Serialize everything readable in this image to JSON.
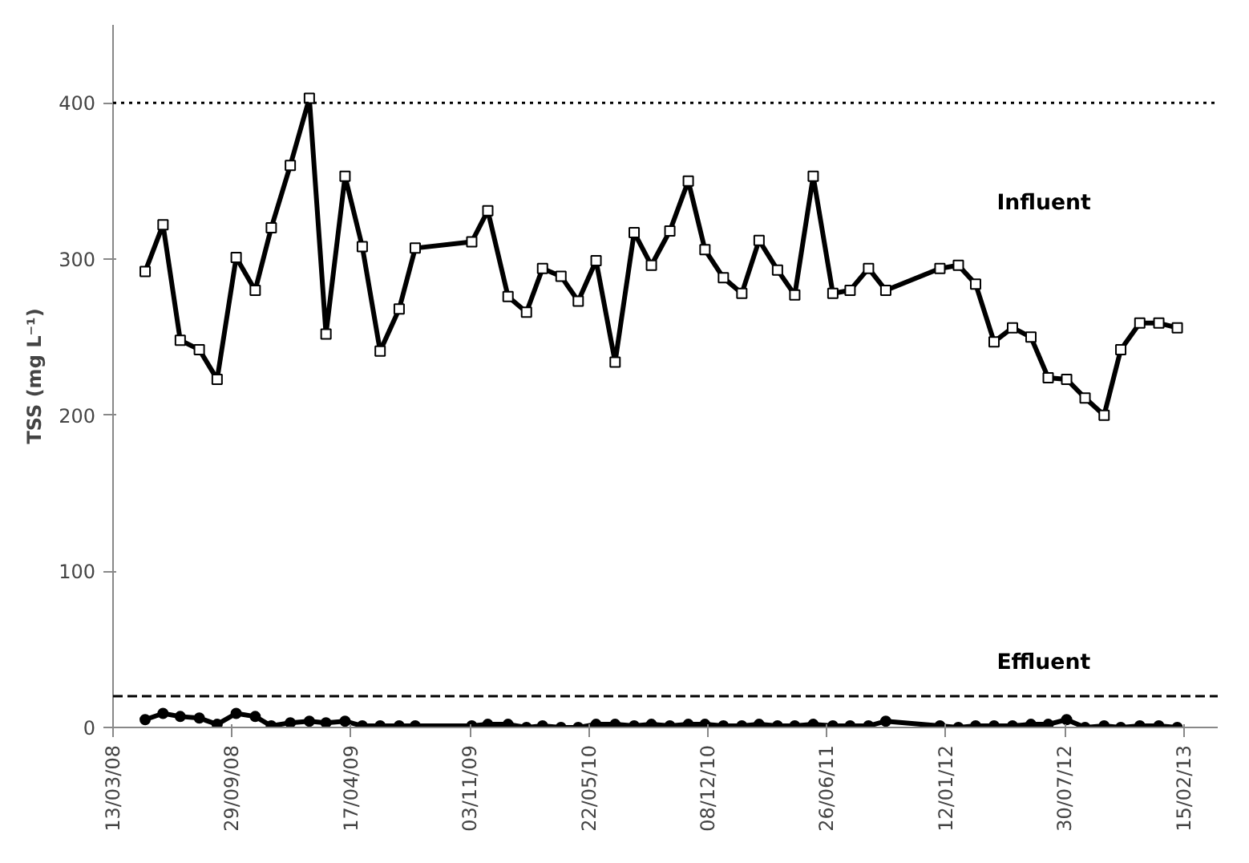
{
  "chart_data": {
    "type": "line",
    "ylabel": "TSS (mg L⁻¹)",
    "x": [
      "2008-05-06",
      "2008-06-05",
      "2008-07-04",
      "2008-08-05",
      "2008-09-04",
      "2008-10-06",
      "2008-11-07",
      "2008-12-04",
      "2009-01-05",
      "2009-02-06",
      "2009-03-06",
      "2009-04-07",
      "2009-05-06",
      "2009-06-05",
      "2009-07-07",
      "2009-08-03",
      "2009-11-06",
      "2009-12-03",
      "2010-01-06",
      "2010-02-06",
      "2010-03-05",
      "2010-04-05",
      "2010-05-04",
      "2010-06-03",
      "2010-07-05",
      "2010-08-06",
      "2010-09-04",
      "2010-10-05",
      "2010-11-05",
      "2010-12-03",
      "2011-01-03",
      "2011-02-03",
      "2011-03-04",
      "2011-04-04",
      "2011-05-03",
      "2011-06-03",
      "2011-07-06",
      "2011-08-04",
      "2011-09-04",
      "2011-10-03",
      "2012-01-02",
      "2012-02-02",
      "2012-03-02",
      "2012-04-02",
      "2012-05-03",
      "2012-06-03",
      "2012-07-02",
      "2012-08-02",
      "2012-09-02",
      "2012-10-04",
      "2012-11-01",
      "2012-12-03",
      "2013-01-04",
      "2013-02-04"
    ],
    "series": [
      {
        "name": "Influent",
        "color": "#000000",
        "marker": "square",
        "values": [
          292,
          322,
          248,
          242,
          223,
          301,
          280,
          320,
          360,
          403,
          252,
          353,
          308,
          241,
          268,
          307,
          311,
          331,
          276,
          266,
          294,
          289,
          273,
          299,
          234,
          317,
          296,
          318,
          350,
          306,
          288,
          278,
          312,
          293,
          277,
          353,
          278,
          280,
          294,
          280,
          294,
          296,
          284,
          247,
          256,
          250,
          224,
          223,
          211,
          200,
          242,
          259,
          259,
          256
        ]
      },
      {
        "name": "Effluent",
        "color": "#000000",
        "marker": "circle",
        "values": [
          5,
          9,
          7,
          6,
          2,
          9,
          7,
          1,
          3,
          4,
          3,
          4,
          1,
          1,
          1,
          1,
          1,
          2,
          2,
          0,
          1,
          0,
          0,
          2,
          2,
          1,
          2,
          1,
          2,
          2,
          1,
          1,
          2,
          1,
          1,
          2,
          1,
          1,
          1,
          4,
          1,
          0,
          1,
          1,
          1,
          2,
          2,
          5,
          0,
          1,
          0,
          1,
          1,
          0
        ]
      }
    ],
    "xlim": [
      "2008-03-13",
      "2013-04-13"
    ],
    "xticks": [
      {
        "value": "2008-03-13",
        "label": "13/03/08"
      },
      {
        "value": "2008-09-29",
        "label": "29/09/08"
      },
      {
        "value": "2009-04-17",
        "label": "17/04/09"
      },
      {
        "value": "2009-11-03",
        "label": "03/11/09"
      },
      {
        "value": "2010-05-22",
        "label": "22/05/10"
      },
      {
        "value": "2010-12-08",
        "label": "08/12/10"
      },
      {
        "value": "2011-06-26",
        "label": "26/06/11"
      },
      {
        "value": "2012-01-12",
        "label": "12/01/12"
      },
      {
        "value": "2012-07-30",
        "label": "30/07/12"
      },
      {
        "value": "2013-02-15",
        "label": "15/02/13"
      }
    ],
    "ylim": [
      0,
      450
    ],
    "yticks": [
      0,
      100,
      200,
      300,
      400
    ],
    "ref_lines": [
      {
        "axis": "y",
        "value": 400,
        "label": null,
        "line_style": "dotted",
        "color": "#000000"
      },
      {
        "axis": "y",
        "value": 20,
        "label": null,
        "line_style": "dashed",
        "color": "#000000"
      }
    ],
    "grid": false,
    "line_style": "solid"
  }
}
